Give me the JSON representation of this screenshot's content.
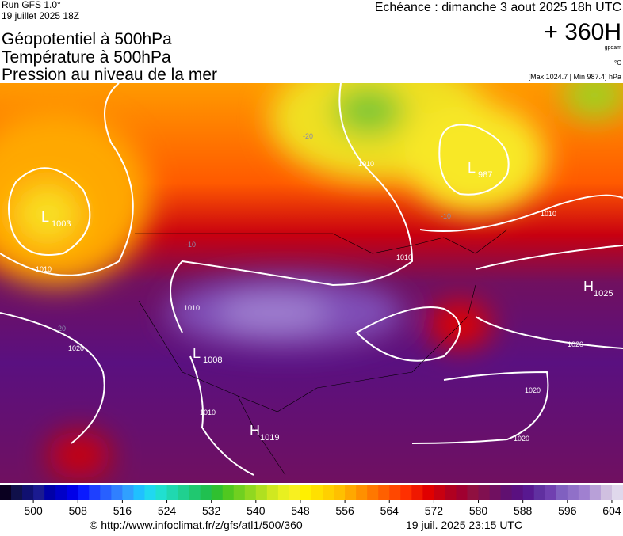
{
  "header": {
    "run": "Run GFS 1.0°",
    "run_date": "19 juillet 2025 18Z",
    "titles": [
      "Géopotentiel à 500hPa",
      "Température à 500hPa",
      "Pression au niveau de la mer"
    ],
    "echeance": "Echéance : dimanche 3 aout 2025 18h UTC",
    "lead": "+ 360H",
    "unit_gp": "gpdam",
    "unit_t": "°C",
    "range": "[Max 1024.7 | Min 987.4] hPa"
  },
  "map": {
    "centers": [
      {
        "kind": "L",
        "value": "1003"
      },
      {
        "kind": "L",
        "value": "987"
      },
      {
        "kind": "H",
        "value": "1025"
      },
      {
        "kind": "L",
        "value": "1008"
      },
      {
        "kind": "H",
        "value": "1019"
      }
    ],
    "isobar_labels": [
      "1010",
      "1020",
      "1010",
      "1010",
      "1010",
      "1010",
      "1020",
      "1020",
      "1020",
      "1010"
    ],
    "temperature_labels": [
      "-20",
      "-10",
      "-10",
      "-20"
    ]
  },
  "colorbar": {
    "range": [
      494,
      606
    ],
    "ticks": [
      500,
      508,
      516,
      524,
      532,
      540,
      548,
      556,
      564,
      572,
      580,
      588,
      596,
      604
    ],
    "colors": [
      "#0a0020",
      "#10104a",
      "#101070",
      "#1a1a90",
      "#0000a8",
      "#0000c8",
      "#0000e8",
      "#0a1aff",
      "#1e40ff",
      "#2860ff",
      "#3080ff",
      "#30a0ff",
      "#20c0ff",
      "#20d8f0",
      "#20e0d0",
      "#20d8b0",
      "#20d090",
      "#20c870",
      "#20c050",
      "#30c030",
      "#50c820",
      "#70d020",
      "#90d820",
      "#b0e020",
      "#d0e820",
      "#e8f020",
      "#f8f020",
      "#fff000",
      "#ffe000",
      "#ffd000",
      "#ffc000",
      "#ffa800",
      "#ff9000",
      "#ff7800",
      "#ff6000",
      "#ff4800",
      "#ff3000",
      "#f01800",
      "#e00000",
      "#c80010",
      "#b00020",
      "#a00030",
      "#901040",
      "#801050",
      "#701060",
      "#601070",
      "#5a1080",
      "#581890",
      "#6030a0",
      "#7040b0",
      "#8060c0",
      "#9070c8",
      "#a080d0",
      "#b8a0d8",
      "#d0c0e0",
      "#e0d8ec"
    ]
  },
  "footer": {
    "url": "© http://www.infoclimat.fr/z/gfs/atl1/500/360",
    "timestamp": "19 juil. 2025 23:15 UTC"
  }
}
